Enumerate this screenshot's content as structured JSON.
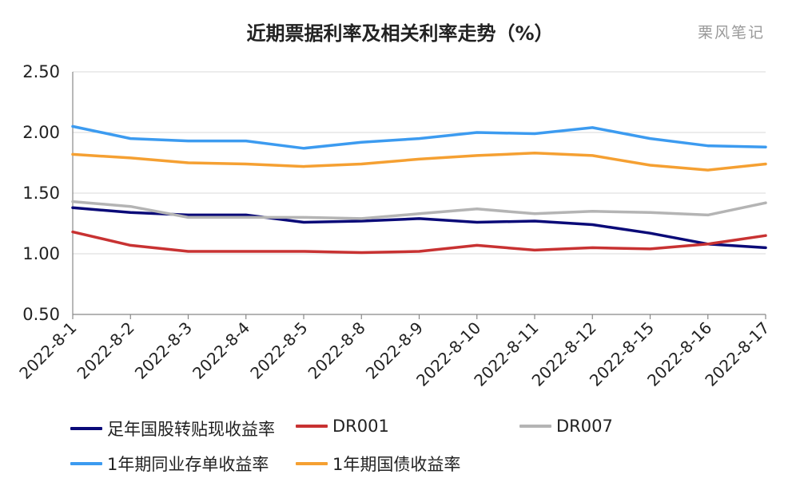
{
  "title": "近期票据利率及相关利率走势（%）",
  "watermark": "栗风笔记",
  "chart_data": {
    "type": "line",
    "title": "近期票据利率及相关利率走势（%）",
    "xlabel": "",
    "ylabel": "",
    "ylim": [
      0.5,
      2.5
    ],
    "yticks": [
      "2.50",
      "2.00",
      "1.50",
      "1.00",
      "0.50"
    ],
    "grid": true,
    "legend_position": "bottom",
    "categories": [
      "2022-8-1",
      "2022-8-2",
      "2022-8-3",
      "2022-8-4",
      "2022-8-5",
      "2022-8-8",
      "2022-8-9",
      "2022-8-10",
      "2022-8-11",
      "2022-8-12",
      "2022-8-15",
      "2022-8-16",
      "2022-8-17"
    ],
    "series": [
      {
        "name": "足年国股转贴现收益率",
        "color": "#0a0a78",
        "values": [
          1.38,
          1.34,
          1.32,
          1.32,
          1.26,
          1.27,
          1.29,
          1.26,
          1.27,
          1.24,
          1.17,
          1.08,
          1.05
        ]
      },
      {
        "name": "DR001",
        "color": "#c83232",
        "values": [
          1.18,
          1.07,
          1.02,
          1.02,
          1.02,
          1.01,
          1.02,
          1.07,
          1.03,
          1.05,
          1.04,
          1.08,
          1.15
        ]
      },
      {
        "name": "DR007",
        "color": "#b4b4b4",
        "values": [
          1.43,
          1.39,
          1.3,
          1.3,
          1.3,
          1.29,
          1.33,
          1.37,
          1.33,
          1.35,
          1.34,
          1.32,
          1.42
        ]
      },
      {
        "name": "1年期同业存单收益率",
        "color": "#3c9bf0",
        "values": [
          2.05,
          1.95,
          1.93,
          1.93,
          1.87,
          1.92,
          1.95,
          2.0,
          1.99,
          2.04,
          1.95,
          1.89,
          1.88
        ]
      },
      {
        "name": "1年期国债收益率",
        "color": "#f5a032",
        "values": [
          1.82,
          1.79,
          1.75,
          1.74,
          1.72,
          1.74,
          1.78,
          1.81,
          1.83,
          1.81,
          1.73,
          1.69,
          1.74
        ]
      }
    ]
  }
}
